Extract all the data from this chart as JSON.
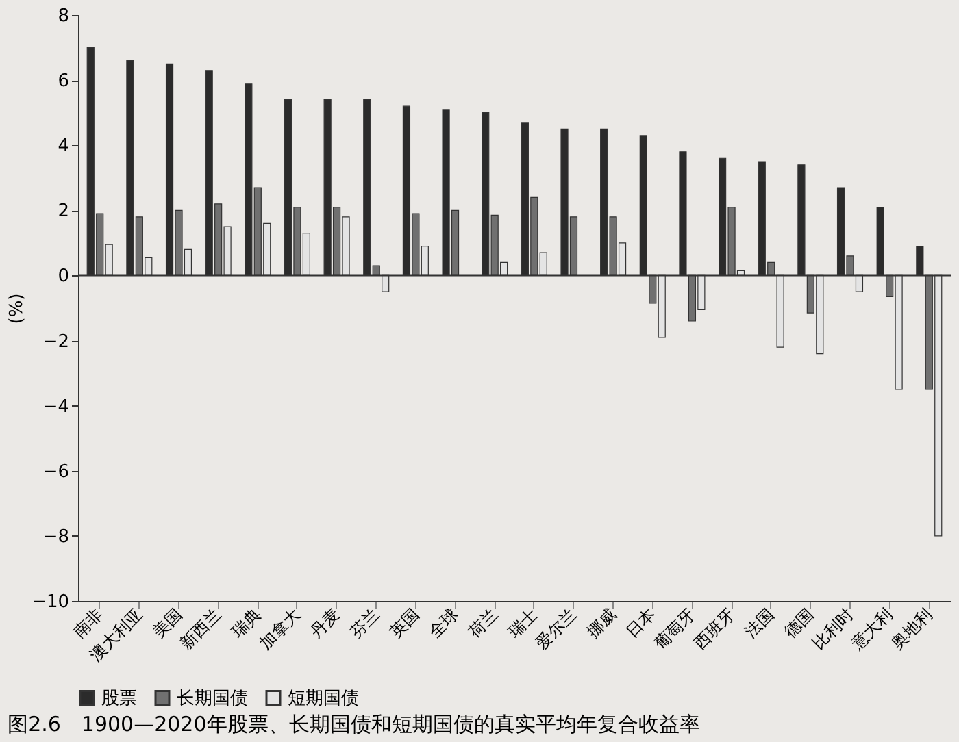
{
  "chart_data": {
    "type": "bar",
    "title": "图2.6　1900—2020年股票、长期国债和短期国债的真实平均年复合收益率",
    "ylabel": "(%)",
    "categories": [
      "南非",
      "澳大利亚",
      "美国",
      "新西兰",
      "瑞典",
      "加拿大",
      "丹麦",
      "芬兰",
      "英国",
      "全球",
      "荷兰",
      "瑞士",
      "爱尔兰",
      "挪威",
      "日本",
      "葡萄牙",
      "西班牙",
      "法国",
      "德国",
      "比利时",
      "意大利",
      "奥地利"
    ],
    "series": [
      {
        "name": "股票",
        "color": "#2b2b2b",
        "values": [
          7.0,
          6.6,
          6.5,
          6.3,
          5.9,
          5.4,
          5.4,
          5.4,
          5.2,
          5.1,
          5.0,
          4.7,
          4.5,
          4.5,
          4.3,
          3.8,
          3.6,
          3.5,
          3.4,
          2.7,
          2.1,
          0.9
        ]
      },
      {
        "name": "长期国债",
        "color": "#707070",
        "values": [
          1.9,
          1.8,
          2.0,
          2.2,
          2.7,
          2.1,
          2.1,
          0.3,
          1.9,
          2.0,
          1.85,
          2.4,
          1.8,
          1.8,
          -0.85,
          -1.4,
          2.1,
          0.4,
          -1.15,
          0.6,
          -0.65,
          -3.5
        ]
      },
      {
        "name": "短期国债",
        "color": "#e4e4e4",
        "values": [
          0.95,
          0.55,
          0.8,
          1.5,
          1.6,
          1.3,
          1.8,
          -0.5,
          0.9,
          null,
          0.4,
          0.7,
          null,
          1.0,
          -1.9,
          -1.05,
          0.15,
          -2.2,
          -2.4,
          -0.5,
          -3.5,
          -8.0
        ]
      }
    ],
    "ylim": [
      -10,
      8
    ],
    "yticks": [
      -10,
      -8,
      -6,
      -4,
      -2,
      0,
      2,
      4,
      6,
      8
    ],
    "grid": false,
    "legend": "bottom",
    "ref_lines": [
      {
        "axis": "y",
        "value": 0,
        "color": "#333333",
        "line_style": "solid"
      }
    ]
  }
}
